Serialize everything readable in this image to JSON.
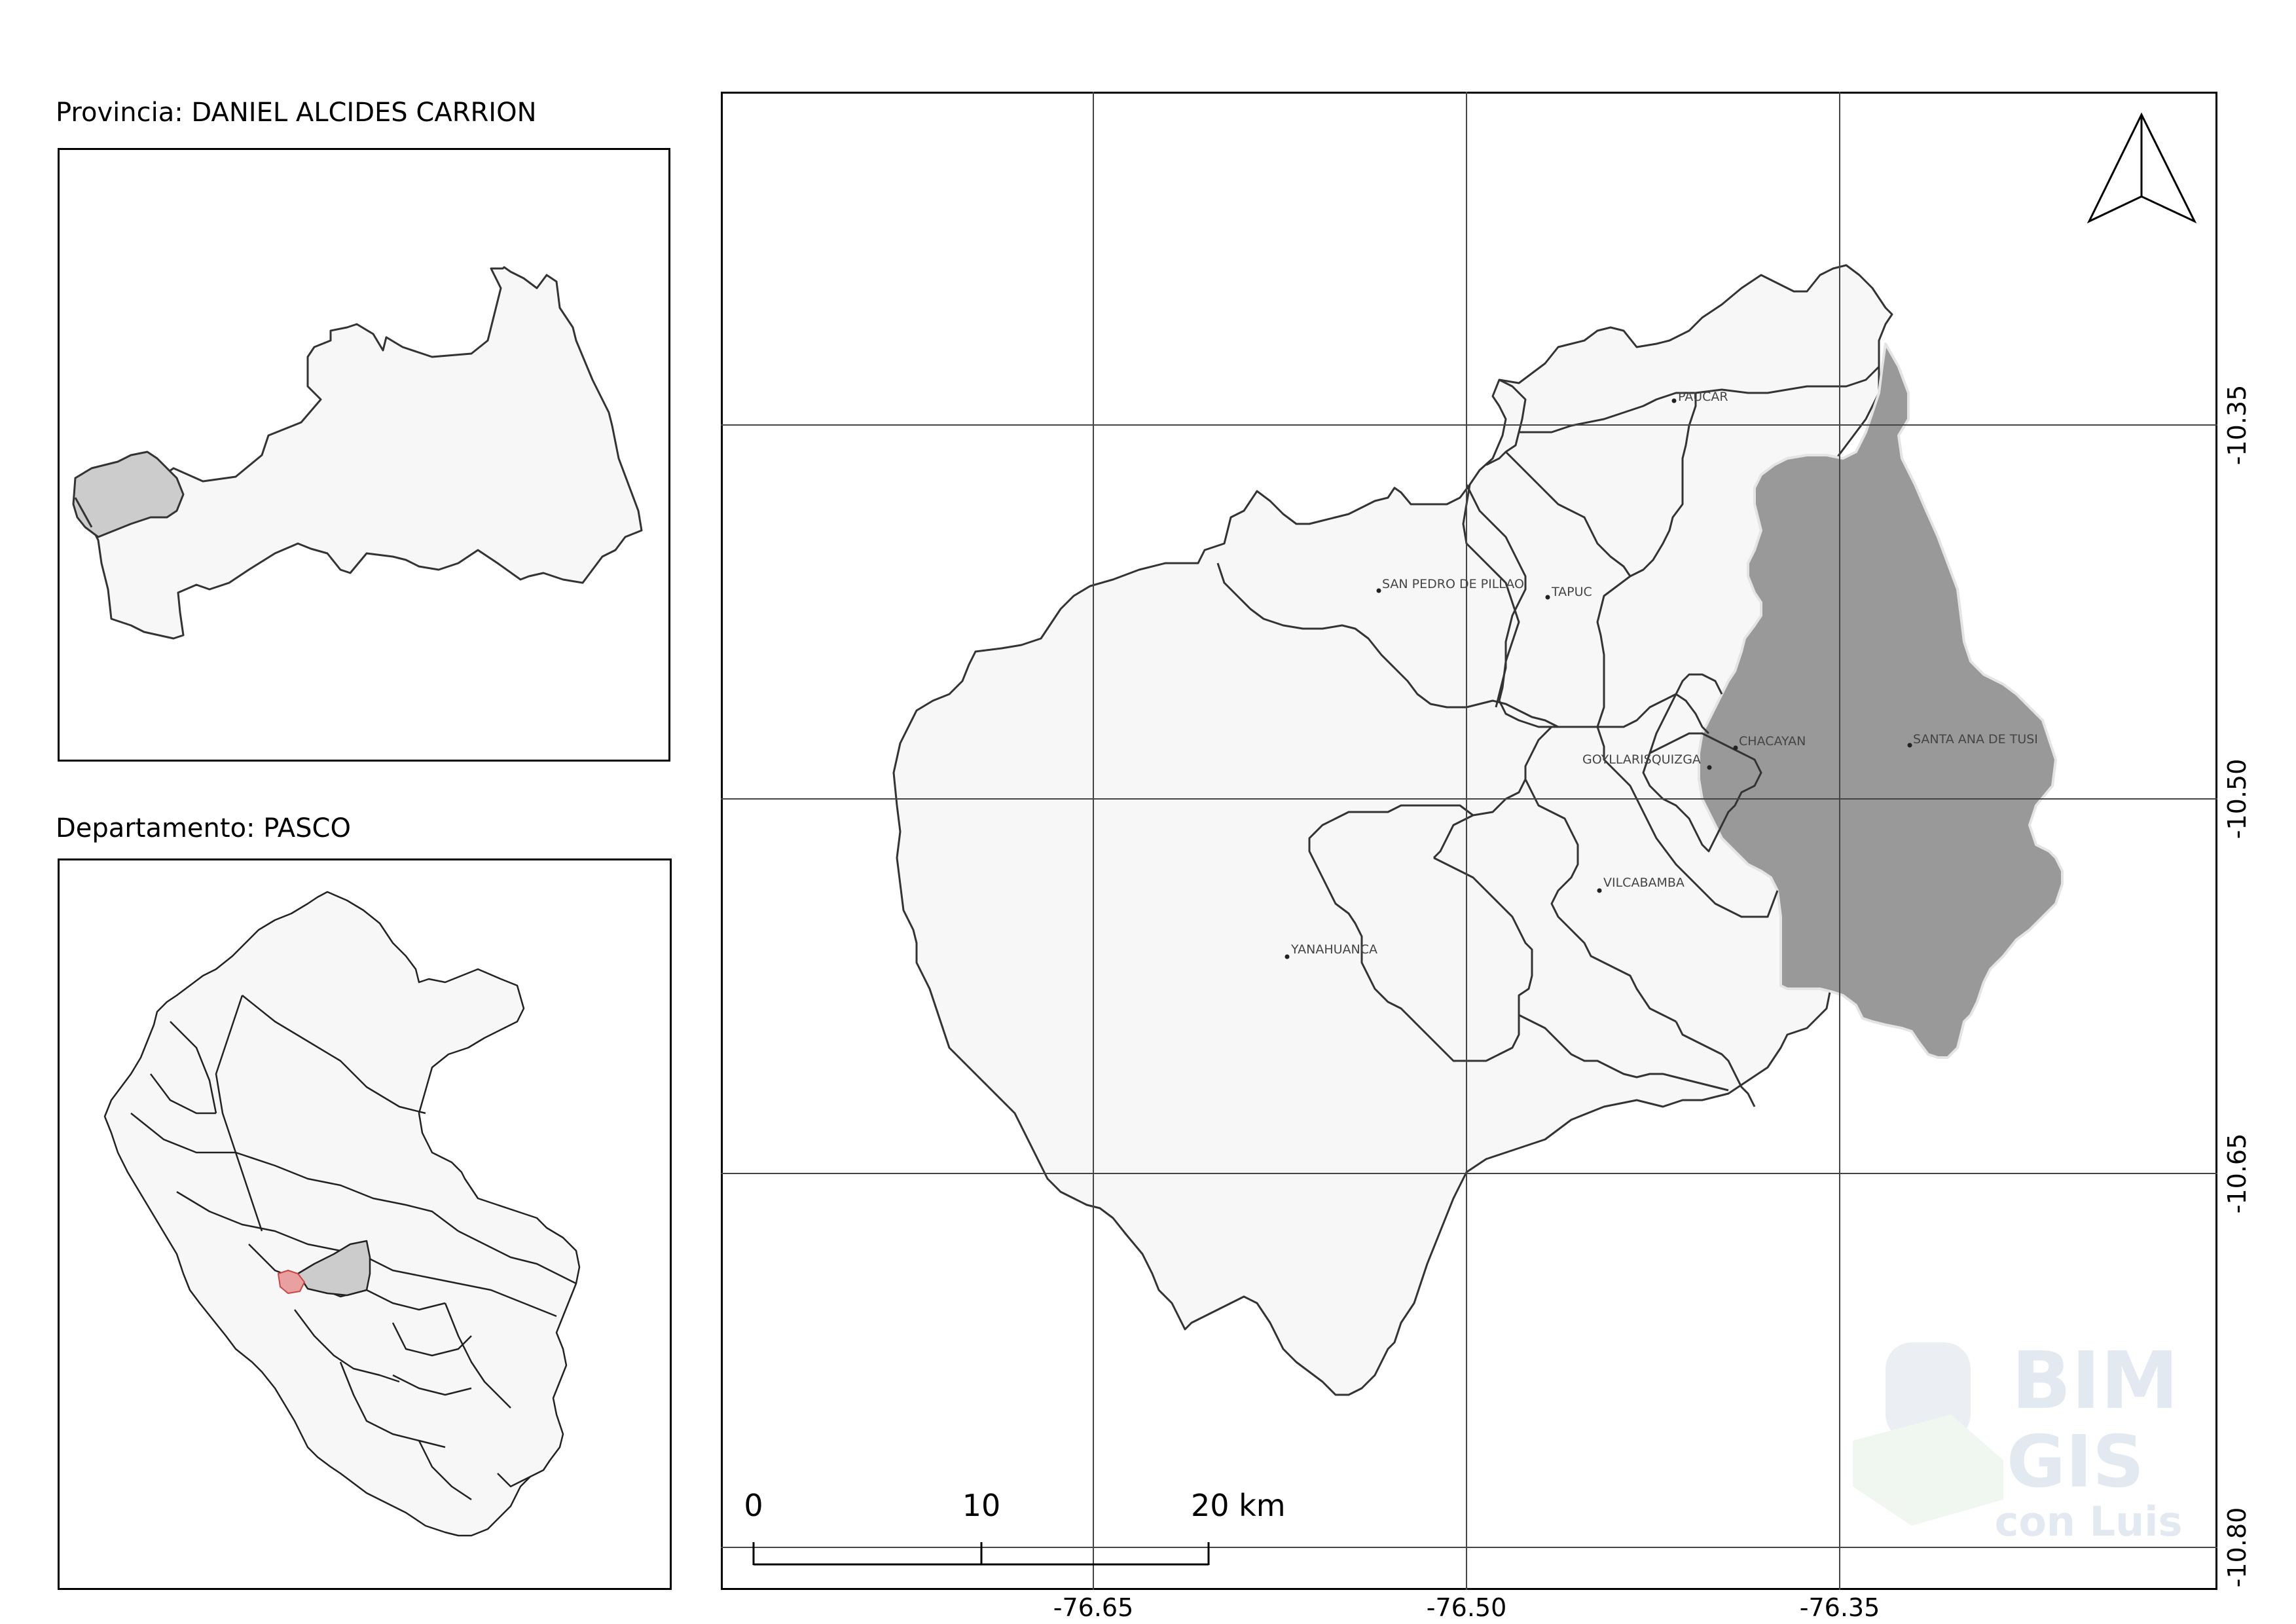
{
  "inset_province": {
    "title": "Provincia: DANIEL ALCIDES CARRION"
  },
  "inset_department": {
    "title": "Departamento: PASCO"
  },
  "main_map": {
    "districts": [
      {
        "name": "PAUCAR"
      },
      {
        "name": "SAN PEDRO DE PILLAO"
      },
      {
        "name": "TAPUC"
      },
      {
        "name": "CHACAYAN"
      },
      {
        "name": "SANTA ANA DE TUSI"
      },
      {
        "name": "GOYLLARISQUIZGA"
      },
      {
        "name": "VILCABAMBA"
      },
      {
        "name": "YANAHUANCA"
      }
    ],
    "highlighted_district": "SANTA ANA DE TUSI",
    "longitude_labels": [
      "-76.65",
      "-76.50",
      "-76.35"
    ],
    "latitude_labels": [
      "-10.35",
      "-10.50",
      "-10.65",
      "-10.80"
    ],
    "scale_bar": {
      "labels": [
        "0",
        "10",
        "20 km"
      ]
    },
    "north_arrow": "north-arrow-icon"
  },
  "watermark": {
    "lines": [
      "BIM",
      "GIS",
      "con Luis"
    ]
  },
  "colors": {
    "district_fill": "#f7f7f7",
    "highlight_fill": "#999999",
    "inset_highlight_fill": "#cccccc",
    "department_highlight": "#e8a0a0",
    "border": "#333333",
    "grid": "#444444"
  }
}
